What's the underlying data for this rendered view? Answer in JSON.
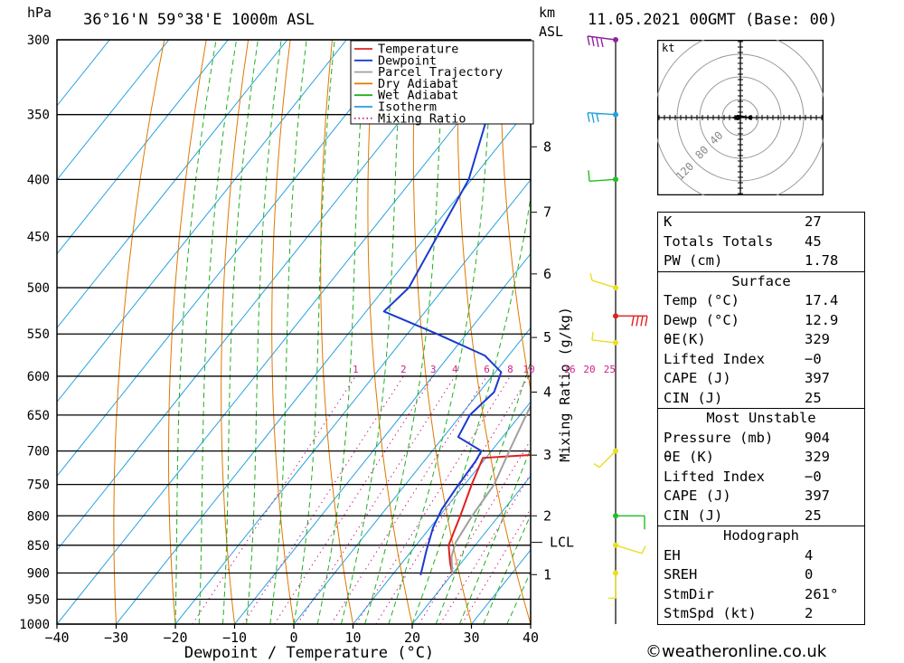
{
  "header": {
    "unit_hpa": "hPa",
    "location": "36°16'N  59°38'E  1000m  ASL",
    "unit_km": "km",
    "unit_asl": "ASL",
    "datetime": "11.05.2021  00GMT  (Base: 00)"
  },
  "legend": [
    {
      "label": "Temperature",
      "color": "#e02020",
      "style": "solid"
    },
    {
      "label": "Dewpoint",
      "color": "#1a3ad0",
      "style": "solid"
    },
    {
      "label": "Parcel Trajectory",
      "color": "#a0a0a0",
      "style": "solid"
    },
    {
      "label": "Dry Adiabat",
      "color": "#e07800",
      "style": "solid"
    },
    {
      "label": "Wet Adiabat",
      "color": "#20b020",
      "style": "solid"
    },
    {
      "label": "Isotherm",
      "color": "#20a0e0",
      "style": "solid"
    },
    {
      "label": "Mixing Ratio",
      "color": "#d0208a",
      "style": "dotted"
    }
  ],
  "chart_data": {
    "type": "line",
    "xlabel": "Dewpoint / Temperature (°C)",
    "ylabel": "hPa",
    "y2label": "Mixing Ratio (g/kg)",
    "xlim": [
      -40,
      40
    ],
    "ylim": [
      1000,
      300
    ],
    "x_ticks": [
      -40,
      -30,
      -20,
      -10,
      0,
      10,
      20,
      30,
      40
    ],
    "x_tick_labels": [
      "−40",
      "−30",
      "−20",
      "−10",
      "0",
      "10",
      "20",
      "30",
      "40"
    ],
    "pressure_levels": [
      300,
      350,
      400,
      450,
      500,
      550,
      600,
      650,
      700,
      750,
      800,
      850,
      900,
      950,
      1000
    ],
    "km_ticks": [
      {
        "km": "1",
        "p": 903
      },
      {
        "km": "2",
        "p": 800
      },
      {
        "km": "3",
        "p": 706
      },
      {
        "km": "4",
        "p": 620
      },
      {
        "km": "5",
        "p": 554
      },
      {
        "km": "6",
        "p": 486
      },
      {
        "km": "7",
        "p": 428
      },
      {
        "km": "8",
        "p": 374
      }
    ],
    "lcl": {
      "label": "LCL",
      "p": 845
    },
    "mixing_ratio_labels": [
      "1",
      "2",
      "3",
      "4",
      "6",
      "8",
      "10",
      "16",
      "20",
      "25"
    ],
    "series": [
      {
        "name": "Temperature",
        "color": "#e02020",
        "points": [
          [
            20.2,
            904
          ],
          [
            18.0,
            880
          ],
          [
            15.5,
            850
          ],
          [
            13.5,
            800
          ],
          [
            11.2,
            750
          ],
          [
            9.5,
            710
          ],
          [
            18.5,
            705
          ],
          [
            16.0,
            660
          ],
          [
            13.5,
            640
          ],
          [
            11.0,
            610
          ],
          [
            9.5,
            590
          ],
          [
            8.0,
            560
          ],
          [
            7.5,
            540
          ],
          [
            6.0,
            520
          ],
          [
            3.5,
            500
          ],
          [
            -0.5,
            450
          ],
          [
            -5.0,
            400
          ],
          [
            -10.0,
            350
          ],
          [
            -16.0,
            300
          ]
        ]
      },
      {
        "name": "Dewpoint",
        "color": "#1a3ad0",
        "points": [
          [
            14.8,
            904
          ],
          [
            12.5,
            860
          ],
          [
            10.5,
            820
          ],
          [
            9.5,
            790
          ],
          [
            9.0,
            750
          ],
          [
            8.7,
            715
          ],
          [
            8.3,
            700
          ],
          [
            2.5,
            680
          ],
          [
            1.5,
            650
          ],
          [
            2.5,
            620
          ],
          [
            1.0,
            595
          ],
          [
            -4.0,
            575
          ],
          [
            -15.0,
            550
          ],
          [
            -27.0,
            525
          ],
          [
            -26.0,
            500
          ],
          [
            -30.5,
            400
          ],
          [
            -36.0,
            350
          ],
          [
            -32.0,
            330
          ],
          [
            -22.0,
            300
          ]
        ]
      },
      {
        "name": "Parcel Trajectory",
        "color": "#a0a0a0",
        "points": [
          [
            20.2,
            904
          ],
          [
            17.5,
            870
          ],
          [
            16.3,
            845
          ],
          [
            15.5,
            800
          ],
          [
            15.0,
            750
          ],
          [
            13.0,
            700
          ],
          [
            11.0,
            650
          ],
          [
            9.0,
            600
          ],
          [
            6.3,
            550
          ],
          [
            3.8,
            500
          ],
          [
            -0.5,
            450
          ],
          [
            -5.2,
            400
          ],
          [
            -10.2,
            350
          ],
          [
            -16.2,
            300
          ]
        ]
      }
    ]
  },
  "winds": {
    "unit": "kt",
    "flag_colors": [
      "#9020a0",
      "#20a0e0",
      "#20c020",
      "#e8e020",
      "#e02020",
      "#e8e020",
      "#e8e020",
      "#20c020",
      "#e8e020",
      "#e8e020"
    ]
  },
  "hodograph": {
    "unit": "kt",
    "ring_labels": [
      "40",
      "80",
      "120"
    ]
  },
  "indices": {
    "k": {
      "label": "K",
      "value": "27"
    },
    "tt": {
      "label": "Totals Totals",
      "value": "45"
    },
    "pw": {
      "label": "PW (cm)",
      "value": "1.78"
    }
  },
  "surface": {
    "title": "Surface",
    "rows": [
      {
        "label": "Temp (°C)",
        "value": "17.4"
      },
      {
        "label": "Dewp (°C)",
        "value": "12.9"
      },
      {
        "label": "θE(K)",
        "value": "329"
      },
      {
        "label": "Lifted Index",
        "value": "−0"
      },
      {
        "label": "CAPE (J)",
        "value": "397"
      },
      {
        "label": "CIN (J)",
        "value": "25"
      }
    ]
  },
  "most_unstable": {
    "title": "Most Unstable",
    "rows": [
      {
        "label": "Pressure (mb)",
        "value": "904"
      },
      {
        "label": "θE (K)",
        "value": "329"
      },
      {
        "label": "Lifted Index",
        "value": "−0"
      },
      {
        "label": "CAPE (J)",
        "value": "397"
      },
      {
        "label": "CIN (J)",
        "value": "25"
      }
    ]
  },
  "hodograph_table": {
    "title": "Hodograph",
    "rows": [
      {
        "label": "EH",
        "value": "4"
      },
      {
        "label": "SREH",
        "value": "0"
      },
      {
        "label": "StmDir",
        "value": "261°"
      },
      {
        "label": "StmSpd (kt)",
        "value": "2"
      }
    ]
  },
  "footer": {
    "copyright": "©weatheronline.co.uk"
  }
}
